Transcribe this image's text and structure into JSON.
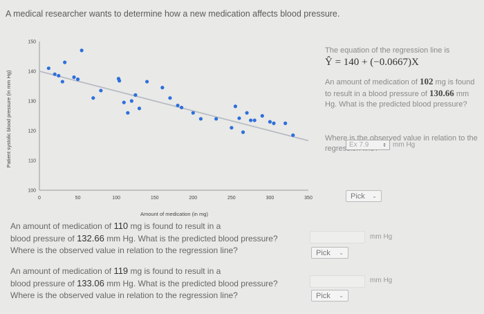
{
  "problem": {
    "title": "A medical researcher wants to determine how a new medication affects blood pressure."
  },
  "chart_data": {
    "type": "scatter",
    "xlabel": "Amount of medication (in mg)",
    "ylabel": "Patient systolic blood pressure (in mm Hg)",
    "xlim": [
      0,
      350
    ],
    "ylim": [
      100,
      150
    ],
    "x_ticks": [
      0,
      50,
      100,
      150,
      200,
      250,
      300,
      350
    ],
    "y_ticks": [
      100,
      110,
      120,
      130,
      140,
      150
    ],
    "regression": {
      "intercept": 140,
      "slope": -0.0667
    },
    "points": [
      [
        12,
        141
      ],
      [
        20,
        139
      ],
      [
        25,
        138.5
      ],
      [
        30,
        136.5
      ],
      [
        33,
        143
      ],
      [
        45,
        138
      ],
      [
        50,
        137.3
      ],
      [
        55,
        147
      ],
      [
        70,
        131
      ],
      [
        80,
        133.5
      ],
      [
        103,
        137.5
      ],
      [
        104,
        136.8
      ],
      [
        110,
        129.5
      ],
      [
        115,
        126
      ],
      [
        120,
        130
      ],
      [
        125,
        132
      ],
      [
        130,
        127.5
      ],
      [
        140,
        136.5
      ],
      [
        160,
        134.5
      ],
      [
        170,
        131
      ],
      [
        180,
        128.5
      ],
      [
        185,
        127.8
      ],
      [
        200,
        126
      ],
      [
        210,
        124
      ],
      [
        230,
        124
      ],
      [
        250,
        121
      ],
      [
        255,
        128.2
      ],
      [
        260,
        124.2
      ],
      [
        265,
        119.5
      ],
      [
        270,
        126
      ],
      [
        275,
        123.5
      ],
      [
        280,
        123.5
      ],
      [
        290,
        125
      ],
      [
        300,
        123
      ],
      [
        305,
        122.5
      ],
      [
        320,
        122.5
      ],
      [
        330,
        118.5
      ]
    ]
  },
  "side": {
    "eq_intro": "The equation of the regression line is",
    "equation": "Ŷ = 140 + (−0.0667)X",
    "q_part1": "An amount of medication of",
    "q_amount": "102",
    "q_unit1": "mg is found to result in a blood pressure of",
    "q_bp": "130.66",
    "q_part2": "mm Hg. What is the predicted blood pressure?",
    "answer_placeholder": "Ex 7.9",
    "answer_unit": "mm Hg",
    "where_text": "Where is the observed value in relation to the regression line?",
    "pick_label": "Pick"
  },
  "q1": {
    "line1_a": "An amount of medication of",
    "amount": "110",
    "line1_b": "mg is found to result in a",
    "line2_a": "blood pressure of",
    "bp": "132.66",
    "line2_b": "mm Hg. What is the predicted blood pressure?",
    "line3": "Where is the observed value in relation to the regression line?",
    "unit": "mm Hg",
    "pick_label": "Pick"
  },
  "q2": {
    "line1_a": "An amount of medication of",
    "amount": "119",
    "line1_b": "mg is found to result in a",
    "line2_a": "blood pressure of",
    "bp": "133.06",
    "line2_b": "mm Hg. What is the predicted blood pressure?",
    "line3": "Where is the observed value in relation to the regression line?",
    "unit": "mm Hg",
    "pick_label": "Pick"
  },
  "colors": {
    "point": "#2d6fdc",
    "line": "#b7bcc4",
    "axis": "#999999"
  }
}
